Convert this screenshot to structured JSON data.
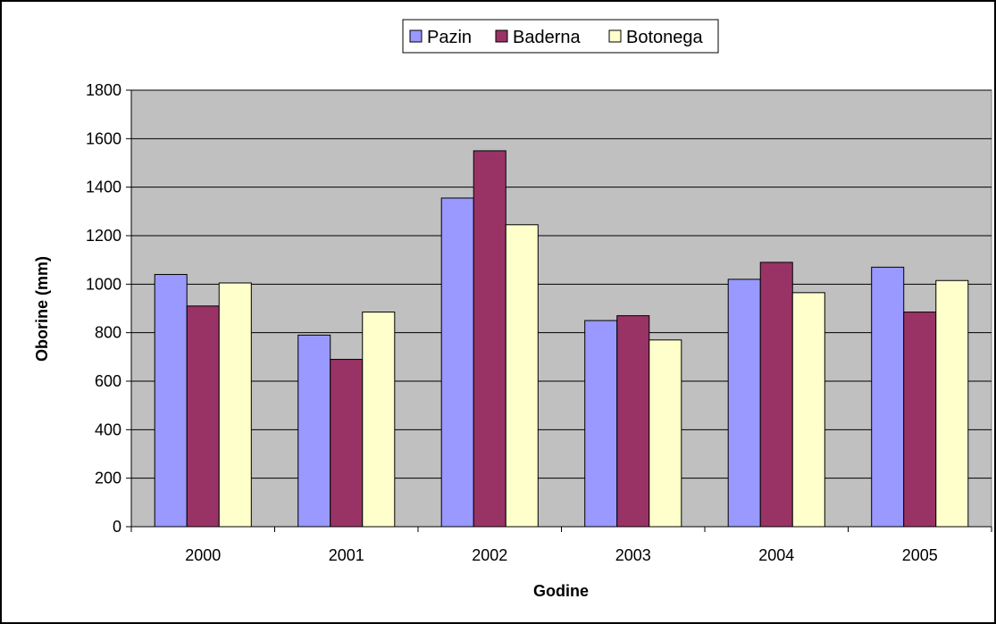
{
  "chart_data": {
    "type": "bar",
    "title": "",
    "xlabel": "Godine",
    "ylabel": "Oborine (mm)",
    "categories": [
      "2000",
      "2001",
      "2002",
      "2003",
      "2004",
      "2005"
    ],
    "ylim": [
      0,
      1800
    ],
    "yticks": [
      "0",
      "200",
      "400",
      "600",
      "800",
      "1000",
      "1200",
      "1400",
      "1600",
      "1800"
    ],
    "grid": true,
    "legend_position": "top",
    "series": [
      {
        "name": "Pazin",
        "color": "#9999ff",
        "values": [
          1040,
          790,
          1355,
          850,
          1020,
          1070
        ]
      },
      {
        "name": "Baderna",
        "color": "#993366",
        "values": [
          910,
          690,
          1550,
          870,
          1090,
          885
        ]
      },
      {
        "name": "Botonega",
        "color": "#ffffcc",
        "values": [
          1005,
          885,
          1245,
          770,
          965,
          1015
        ]
      }
    ],
    "plot_background": "#c0c0c0"
  }
}
